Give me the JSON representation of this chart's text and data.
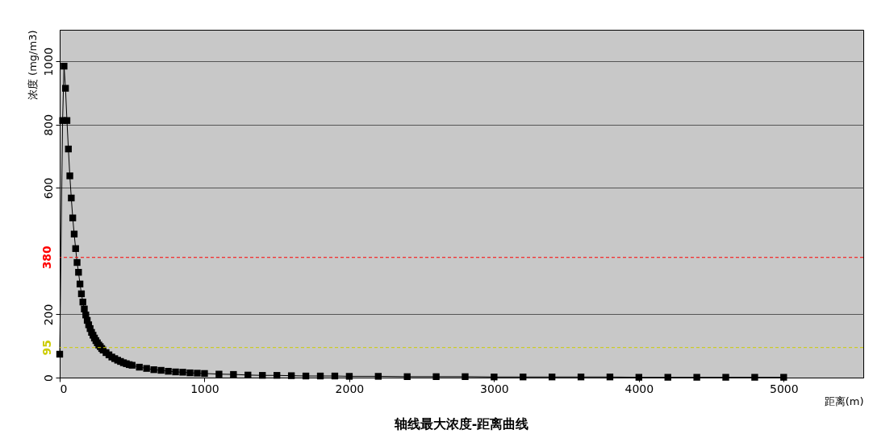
{
  "chart_data": {
    "type": "line",
    "title": "轴线最大浓度-距离曲线",
    "xlabel": "距离(m)",
    "ylabel": "浓度 (mg/m3)",
    "x": [
      0,
      20,
      30,
      40,
      50,
      60,
      70,
      80,
      90,
      100,
      110,
      120,
      130,
      140,
      150,
      160,
      170,
      180,
      190,
      200,
      210,
      220,
      230,
      240,
      250,
      260,
      270,
      280,
      290,
      300,
      320,
      340,
      360,
      380,
      400,
      420,
      440,
      460,
      480,
      500,
      550,
      600,
      650,
      700,
      750,
      800,
      850,
      900,
      950,
      1000,
      1100,
      1200,
      1300,
      1400,
      1500,
      1600,
      1700,
      1800,
      1900,
      2000,
      2200,
      2400,
      2600,
      2800,
      3000,
      3200,
      3400,
      3600,
      3800,
      4000,
      4200,
      4400,
      4600,
      4800,
      5000
    ],
    "series": [
      {
        "color": "#000000",
        "values": [
          74,
          813,
          985,
          915,
          813,
          723,
          638,
          568,
          505,
          454,
          408,
          364,
          333,
          296,
          265,
          239,
          217,
          198,
          181,
          167,
          155,
          143,
          134,
          125,
          117,
          110,
          103,
          98,
          92,
          87,
          79,
          72,
          65,
          60,
          55,
          51,
          47,
          44,
          41,
          39,
          33,
          29,
          25,
          23,
          20,
          18,
          17,
          15,
          14,
          13,
          11,
          10,
          8,
          7,
          7,
          6,
          5,
          5,
          5,
          4,
          4,
          3,
          3,
          3,
          2,
          2,
          2,
          2,
          2,
          1,
          1,
          1,
          1,
          1,
          1
        ]
      }
    ],
    "xlim": [
      0,
      5550
    ],
    "xticks": [
      0,
      1000,
      2000,
      3000,
      4000,
      5000
    ],
    "ylim": [
      0,
      1100
    ],
    "yticks": [
      0,
      200,
      600,
      800,
      1000
    ],
    "ref_lines": [
      {
        "axis": "y",
        "value": 380,
        "label": "380",
        "color": "#ff0000",
        "line_style": "dashed"
      },
      {
        "axis": "y",
        "value": 95,
        "label": "95",
        "color": "#cccc00",
        "line_style": "dashed"
      }
    ],
    "grid": "y",
    "marker": "square",
    "line_style": "solid"
  }
}
